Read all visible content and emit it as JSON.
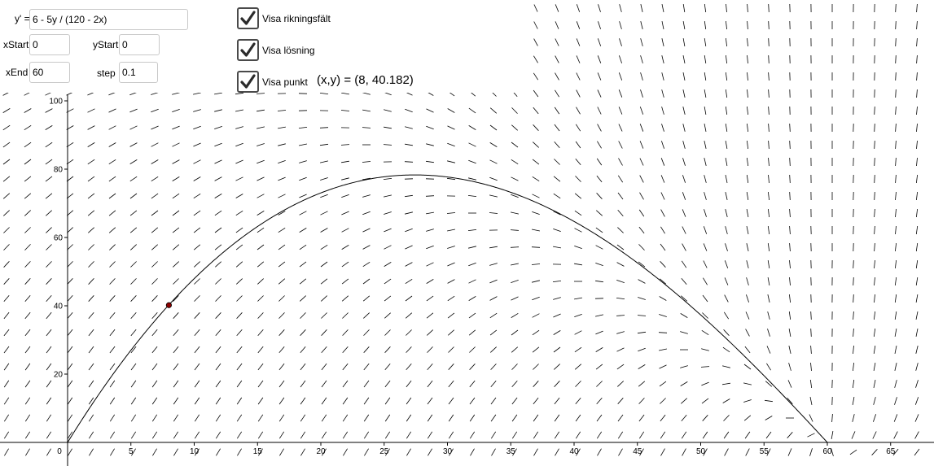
{
  "inputs": {
    "equation_label": "y' =",
    "equation_value": "6 - 5y / (120 - 2x)",
    "xstart_label": "xStart",
    "xstart_value": "0",
    "ystart_label": "yStart",
    "ystart_value": "0",
    "xend_label": "xEnd",
    "xend_value": "60",
    "step_label": "step",
    "step_value": "0.1"
  },
  "checkboxes": [
    {
      "label": "Visa rikningsfält",
      "checked": true
    },
    {
      "label": "Visa lösning",
      "checked": true
    },
    {
      "label": "Visa punkt",
      "checked": true
    }
  ],
  "point_readout": "(x,y) = (8, 40.182)",
  "graph": {
    "x_ticks": [
      "0",
      "5",
      "10",
      "15",
      "20",
      "25",
      "30",
      "35",
      "40",
      "45",
      "50",
      "55",
      "60",
      "65"
    ],
    "y_ticks": [
      "20",
      "40",
      "60",
      "80",
      "100"
    ],
    "point": {
      "x": 8,
      "y": 40.182
    },
    "point_color": "#8b0000",
    "curve_color": "#000000",
    "field_color": "#000000"
  }
}
